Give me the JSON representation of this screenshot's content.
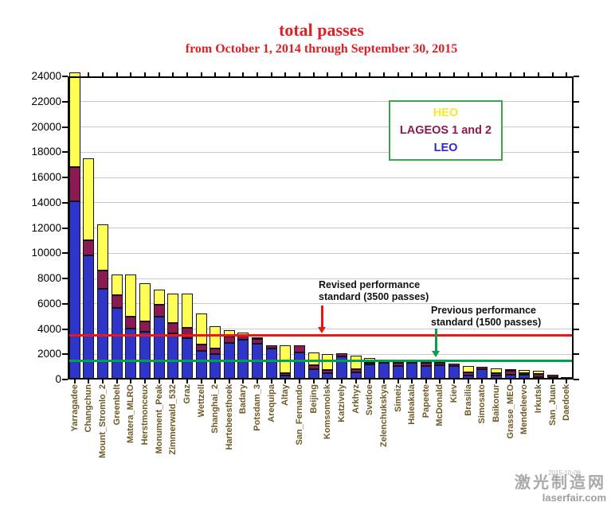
{
  "title": "total passes",
  "subtitle": "from October 1, 2014 through  September 30, 2015",
  "legend": {
    "heo_label": "HEO",
    "lageos_label": "LAGEOS 1 and 2",
    "leo_label": "LEO",
    "heo_color": "#f5e92a",
    "lageos_color": "#8c1a52",
    "leo_color": "#2a2ac8",
    "border_color": "#3fa34d"
  },
  "annotations": {
    "revised_line1": "Revised performance",
    "revised_line2": "standard (3500 passes)",
    "previous_line1": "Previous performance",
    "previous_line2": "standard (1500 passes)"
  },
  "watermark": {
    "line1": "激光制造网",
    "line2": "laserfair.com",
    "stamp": "2015-10-08"
  },
  "chart_data": {
    "type": "bar",
    "stacked": true,
    "title": "total passes",
    "subtitle": "from October 1, 2014 through  September 30, 2015",
    "xlabel": "",
    "ylabel": "",
    "ylim": [
      0,
      24000
    ],
    "ytick_interval": 2000,
    "grid": true,
    "legend_position": "upper right inside",
    "note": "Yarragadee bar exceeds the 24000 axis maximum (clipped)",
    "reference_lines": [
      {
        "label": "Revised performance standard",
        "value": 3500,
        "color": "#ee1515"
      },
      {
        "label": "Previous performance standard",
        "value": 1500,
        "color": "#00a24b"
      }
    ],
    "colors": {
      "LEO": "#2f35c9",
      "LAGEOS 1 and 2": "#8c1a52",
      "HEO": "#ffff55"
    },
    "categories": [
      "Yarragadee",
      "Changchun",
      "Mount_Stromlo_2",
      "Greenbelt",
      "Matera_MLRO",
      "Herstmonceux",
      "Monument_Peak",
      "Zimmerwald_532",
      "Graz",
      "Wettzell",
      "Shanghai_2",
      "Hartebeesthoek",
      "Badary",
      "Potsdam_3",
      "Arequipa",
      "Altay",
      "San_Fernando",
      "Beijing",
      "Komsomolsk",
      "Katzively",
      "Arkhyz",
      "Svetloe",
      "Zelenchukskya",
      "Simeiz",
      "Haleakala",
      "Papeete",
      "McDonald",
      "Kiev",
      "Brasilia",
      "Simosato",
      "Baikonur",
      "Grasse_MEO",
      "Mendeleevo",
      "Irkutsk",
      "San_Juan",
      "Daedoek"
    ],
    "series": [
      {
        "name": "LEO",
        "values": [
          14100,
          9800,
          7200,
          5700,
          4050,
          3800,
          5000,
          3650,
          3300,
          2250,
          2000,
          2900,
          3150,
          2850,
          2450,
          300,
          2150,
          800,
          500,
          1850,
          550,
          1200,
          1300,
          1100,
          1300,
          1100,
          1150,
          1100,
          300,
          800,
          300,
          400,
          350,
          210,
          170,
          200
        ]
      },
      {
        "name": "LAGEOS 1 and 2",
        "values": [
          2700,
          1200,
          1400,
          1000,
          950,
          800,
          900,
          850,
          800,
          550,
          475,
          500,
          350,
          350,
          250,
          180,
          550,
          350,
          250,
          250,
          300,
          150,
          150,
          200,
          150,
          250,
          150,
          150,
          250,
          200,
          200,
          300,
          180,
          210,
          180,
          0
        ]
      },
      {
        "name": "HEO",
        "values": [
          7500,
          6500,
          3700,
          1600,
          3300,
          3000,
          1200,
          2300,
          2700,
          2400,
          1775,
          500,
          200,
          100,
          0,
          2220,
          0,
          1000,
          1250,
          0,
          1050,
          350,
          150,
          300,
          50,
          50,
          50,
          0,
          500,
          0,
          400,
          100,
          250,
          280,
          0,
          0
        ]
      }
    ]
  }
}
